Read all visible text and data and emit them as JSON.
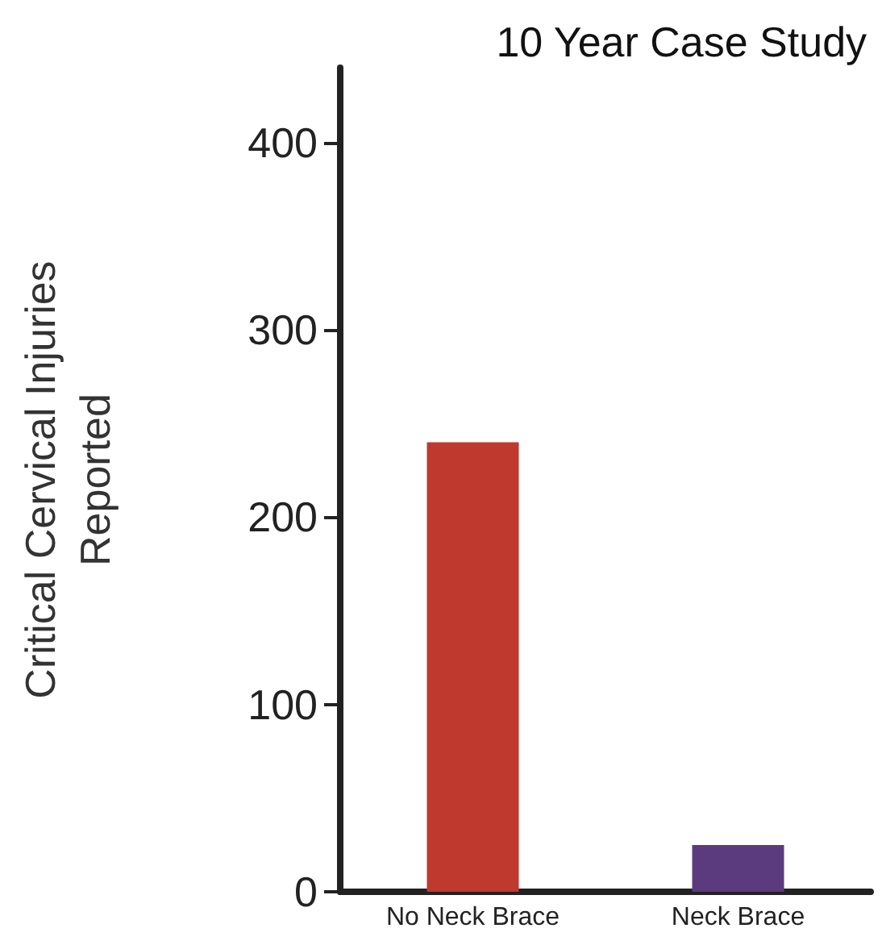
{
  "chart_data": {
    "type": "bar",
    "title": "10 Year Case Study",
    "ylabel": "Critical Cervical Injuries\nReported",
    "categories": [
      "No Neck Brace",
      "Neck Brace"
    ],
    "values": [
      240,
      25
    ],
    "colors": [
      "#c0392f",
      "#5b3a7e"
    ],
    "ylim": [
      0,
      440
    ],
    "yticks": [
      0,
      100,
      200,
      300,
      400
    ],
    "grid": false
  }
}
